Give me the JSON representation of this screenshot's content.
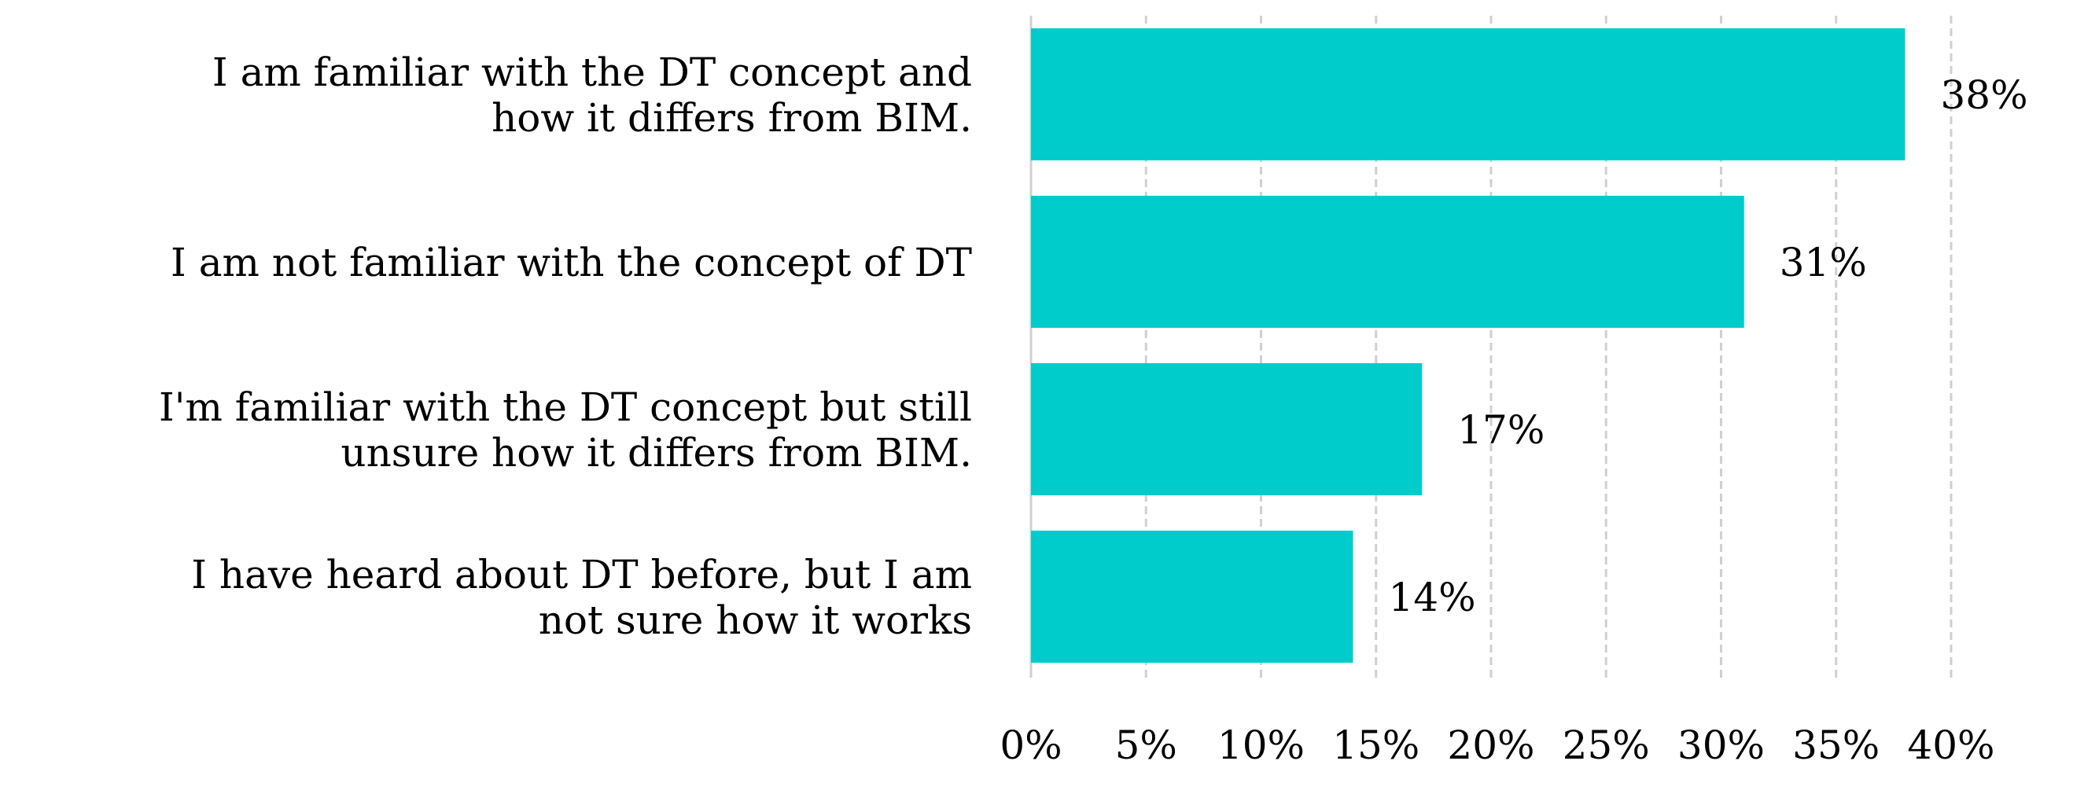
{
  "chart_data": {
    "type": "bar",
    "orientation": "horizontal",
    "categories": [
      [
        "I am familiar with the DT concept and",
        "how it differs from BIM."
      ],
      [
        "I am not familiar with the concept of DT"
      ],
      [
        "I'm familiar with the DT concept but still",
        "unsure how it differs from BIM."
      ],
      [
        "I have heard about DT before, but I am",
        "not sure how it works"
      ]
    ],
    "values": [
      38,
      31,
      17,
      14
    ],
    "data_labels": [
      "38%",
      "31%",
      "17%",
      "14%"
    ],
    "xlim": [
      0,
      40
    ],
    "xticks": [
      0,
      5,
      10,
      15,
      20,
      25,
      30,
      35,
      40
    ],
    "xtick_labels": [
      "0%",
      "5%",
      "10%",
      "15%",
      "20%",
      "25%",
      "30%",
      "35%",
      "40%"
    ],
    "grid": "vertical, dashed",
    "legend": "none",
    "bar_color": "#00CCCC",
    "grid_color": "#D0D0D0",
    "title": "",
    "xlabel": "",
    "ylabel": ""
  }
}
